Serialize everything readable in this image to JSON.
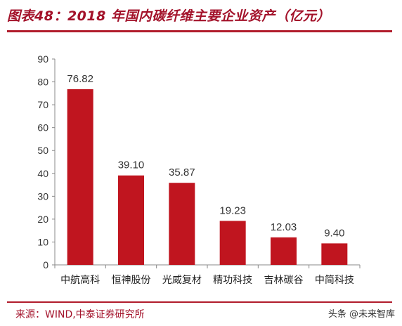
{
  "header": {
    "title": "图表48：2018 年国内碳纤维主要企业资产（亿元）"
  },
  "footer": {
    "source": "来源：WIND,中泰证券研究所",
    "watermark": "头条 @未来智库"
  },
  "colors": {
    "bar": "#c0151f",
    "accent": "#a3122a",
    "axis": "#888888"
  },
  "chart_data": {
    "type": "bar",
    "categories": [
      "中航高科",
      "恒神股份",
      "光威复材",
      "精功科技",
      "吉林碳谷",
      "中简科技"
    ],
    "values": [
      76.82,
      39.1,
      35.87,
      19.23,
      12.03,
      9.4
    ],
    "value_labels": [
      "76.82",
      "39.10",
      "35.87",
      "19.23",
      "12.03",
      "9.40"
    ],
    "ylim": [
      0,
      90
    ],
    "yticks": [
      0,
      10,
      20,
      30,
      40,
      50,
      60,
      70,
      80,
      90
    ],
    "grid": false,
    "title": "图表48：2018 年国内碳纤维主要企业资产（亿元）",
    "xlabel": "",
    "ylabel": ""
  }
}
